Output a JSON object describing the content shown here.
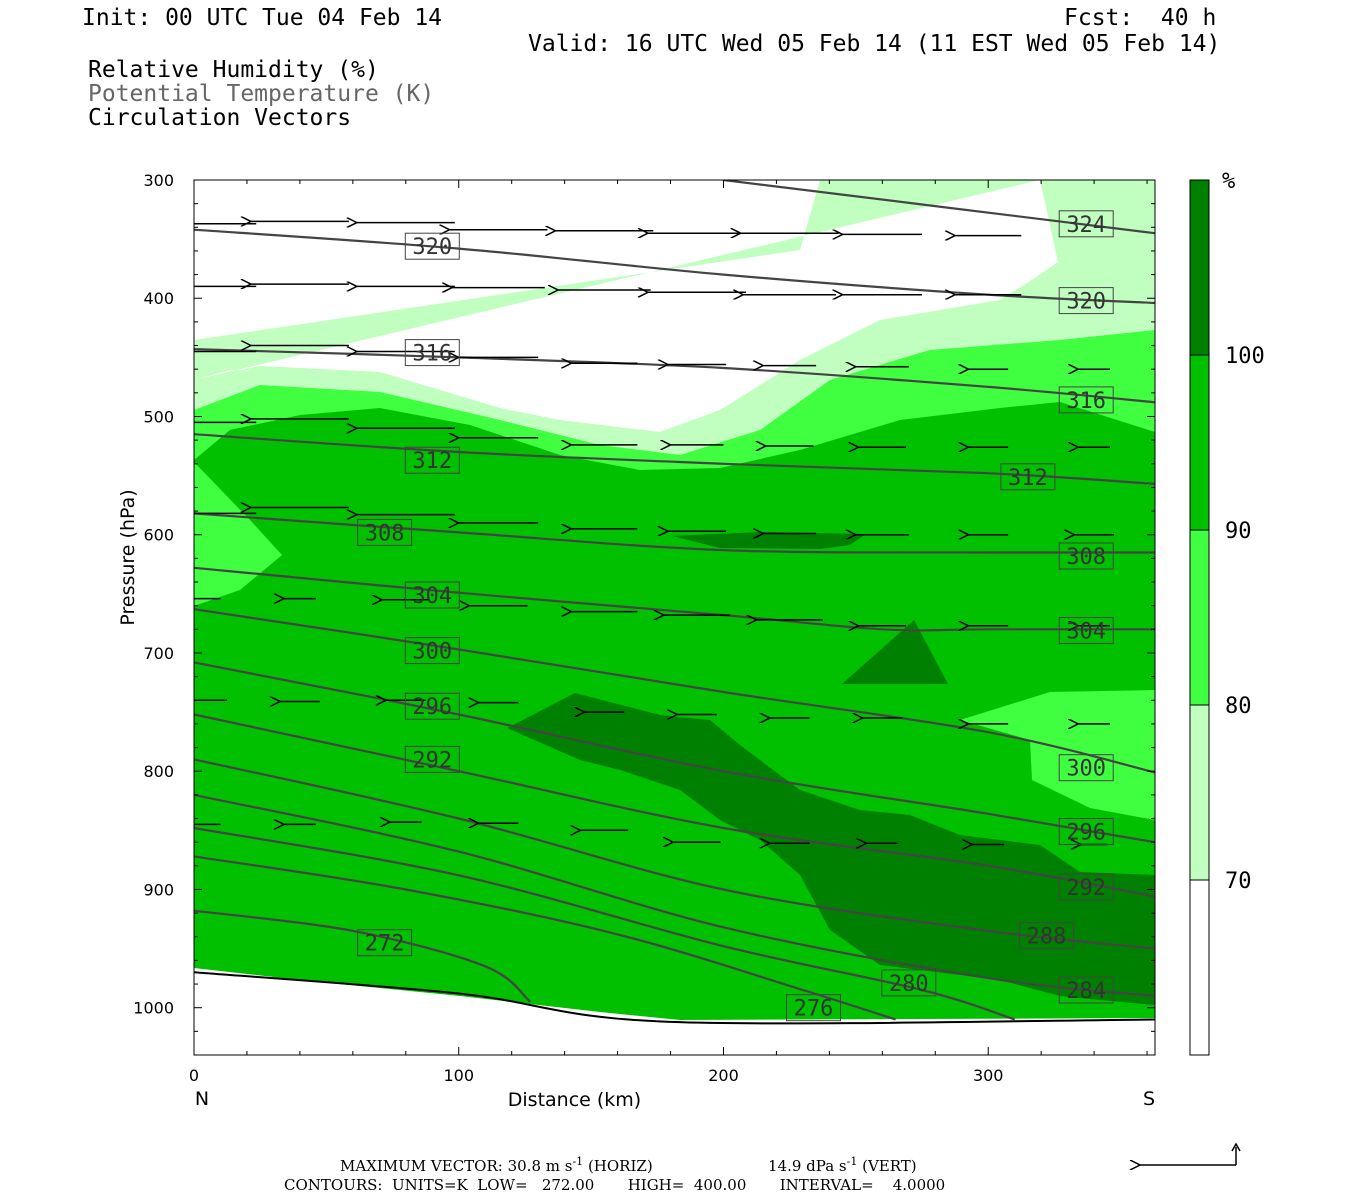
{
  "header": {
    "init": "Init: 00 UTC Tue 04 Feb 14",
    "fcst": "Fcst:  40 h",
    "valid": "Valid: 16 UTC Wed 05 Feb 14 (11 EST Wed 05 Feb 14)"
  },
  "legend_titles": [
    {
      "text": "Relative Humidity (%)",
      "color": "#000000"
    },
    {
      "text": "Potential Temperature (K)",
      "color": "#666666"
    },
    {
      "text": "Circulation Vectors",
      "color": "#000000"
    }
  ],
  "colorbar": {
    "unit": "%",
    "labels": [
      "100",
      "90",
      "80",
      "70"
    ],
    "colors": [
      "#ffffff",
      "#c0ffc0",
      "#40ff40",
      "#00c000",
      "#008000"
    ]
  },
  "footer": {
    "max_vector": "MAXIMUM VECTOR:  30.8 m s",
    "horiz": " (HORIZ)",
    "vert_val": "14.9 dPa s",
    "vert": " (VERT)",
    "exp": "-1",
    "contours": "CONTOURS:  UNITS=K  LOW=   272.00       HIGH=  400.00       INTERVAL=    4.0000"
  },
  "chart_data": {
    "type": "cross-section",
    "xlabel": "Distance (km)",
    "ylabel": "Pressure (hPa)",
    "x_ticks": [
      0,
      100,
      200,
      300
    ],
    "y_ticks": [
      300,
      400,
      500,
      600,
      700,
      800,
      900,
      1000
    ],
    "xlim": [
      0,
      363
    ],
    "ylim": [
      300,
      1040
    ],
    "y_inverted": true,
    "end_labels": {
      "left": "N",
      "right": "S"
    },
    "rh_levels": [
      70,
      80,
      90,
      100
    ],
    "theta_contours": [
      {
        "label": "324",
        "points": [
          [
            200,
            300
          ],
          [
            363,
            345
          ]
        ]
      },
      {
        "label": "320",
        "points": [
          [
            0,
            342
          ],
          [
            100,
            358
          ],
          [
            200,
            380
          ],
          [
            300,
            397
          ],
          [
            363,
            404
          ]
        ]
      },
      {
        "label": "316",
        "points": [
          [
            0,
            443
          ],
          [
            100,
            450
          ],
          [
            200,
            459
          ],
          [
            300,
            475
          ],
          [
            363,
            488
          ]
        ]
      },
      {
        "label": "312",
        "points": [
          [
            0,
            515
          ],
          [
            100,
            530
          ],
          [
            200,
            540
          ],
          [
            300,
            548
          ],
          [
            363,
            557
          ]
        ]
      },
      {
        "label": "308",
        "points": [
          [
            0,
            582
          ],
          [
            100,
            598
          ],
          [
            200,
            613
          ],
          [
            300,
            615
          ],
          [
            363,
            615
          ]
        ]
      },
      {
        "label": "304",
        "points": [
          [
            0,
            628
          ],
          [
            100,
            649
          ],
          [
            200,
            668
          ],
          [
            260,
            680
          ],
          [
            300,
            680
          ],
          [
            363,
            680
          ]
        ]
      },
      {
        "label": "300",
        "points": [
          [
            0,
            663
          ],
          [
            100,
            697
          ],
          [
            200,
            733
          ],
          [
            300,
            767
          ],
          [
            363,
            801
          ]
        ]
      },
      {
        "label": "296",
        "points": [
          [
            0,
            708
          ],
          [
            100,
            752
          ],
          [
            200,
            800
          ],
          [
            300,
            836
          ],
          [
            363,
            860
          ]
        ]
      },
      {
        "label": "292",
        "points": [
          [
            0,
            752
          ],
          [
            100,
            800
          ],
          [
            200,
            848
          ],
          [
            300,
            880
          ],
          [
            363,
            906
          ]
        ]
      },
      {
        "label": "288",
        "points": [
          [
            0,
            790
          ],
          [
            100,
            840
          ],
          [
            200,
            900
          ],
          [
            300,
            935
          ],
          [
            363,
            950
          ]
        ]
      },
      {
        "label": "284",
        "points": [
          [
            0,
            820
          ],
          [
            100,
            868
          ],
          [
            200,
            932
          ],
          [
            300,
            975
          ],
          [
            363,
            990
          ]
        ]
      },
      {
        "label": "280",
        "points": [
          [
            0,
            848
          ],
          [
            100,
            888
          ],
          [
            200,
            948
          ],
          [
            275,
            985
          ],
          [
            310,
            1010
          ]
        ]
      },
      {
        "label": "276",
        "points": [
          [
            0,
            872
          ],
          [
            80,
            900
          ],
          [
            160,
            938
          ],
          [
            230,
            985
          ],
          [
            265,
            1010
          ]
        ]
      },
      {
        "label": "272",
        "points": [
          [
            0,
            918
          ],
          [
            60,
            935
          ],
          [
            110,
            965
          ],
          [
            127,
            995
          ]
        ]
      }
    ],
    "contour_label_positions": [
      {
        "label": "324",
        "x": 337,
        "p": 337
      },
      {
        "label": "320",
        "x": 90,
        "p": 356
      },
      {
        "label": "320",
        "x": 337,
        "p": 402
      },
      {
        "label": "316",
        "x": 90,
        "p": 446
      },
      {
        "label": "316",
        "x": 337,
        "p": 486
      },
      {
        "label": "312",
        "x": 90,
        "p": 537
      },
      {
        "label": "312",
        "x": 315,
        "p": 551
      },
      {
        "label": "308",
        "x": 72,
        "p": 598
      },
      {
        "label": "308",
        "x": 337,
        "p": 618
      },
      {
        "label": "304",
        "x": 90,
        "p": 651
      },
      {
        "label": "304",
        "x": 337,
        "p": 681
      },
      {
        "label": "300",
        "x": 90,
        "p": 698
      },
      {
        "label": "300",
        "x": 337,
        "p": 797
      },
      {
        "label": "296",
        "x": 90,
        "p": 745
      },
      {
        "label": "296",
        "x": 337,
        "p": 851
      },
      {
        "label": "292",
        "x": 90,
        "p": 790
      },
      {
        "label": "292",
        "x": 337,
        "p": 898
      },
      {
        "label": "288",
        "x": 322,
        "p": 939
      },
      {
        "label": "284",
        "x": 337,
        "p": 985
      },
      {
        "label": "280",
        "x": 270,
        "p": 979
      },
      {
        "label": "276",
        "x": 234,
        "p": 1000
      },
      {
        "label": "272",
        "x": 72,
        "p": 945
      }
    ],
    "vector_reference": {
      "horizontal_ms": 30.8,
      "vertical_dPas": 14.9
    },
    "vectors": [
      [
        5,
        337,
        -37,
        0
      ],
      [
        40,
        335,
        -37,
        0
      ],
      [
        80,
        336,
        -37,
        0
      ],
      [
        115,
        342,
        -37,
        0
      ],
      [
        155,
        343,
        -37,
        0
      ],
      [
        190,
        345,
        -37,
        0
      ],
      [
        225,
        345,
        -37,
        0
      ],
      [
        260,
        346,
        -30,
        0
      ],
      [
        300,
        347,
        -25,
        0
      ],
      [
        5,
        390,
        -37,
        0
      ],
      [
        40,
        388,
        -37,
        0
      ],
      [
        80,
        390,
        -37,
        0
      ],
      [
        115,
        391,
        -35,
        0
      ],
      [
        155,
        393,
        -35,
        0
      ],
      [
        190,
        395,
        -37,
        0
      ],
      [
        225,
        397,
        -35,
        0
      ],
      [
        260,
        397,
        -30,
        0
      ],
      [
        300,
        397,
        -25,
        0
      ],
      [
        5,
        445,
        -37,
        0
      ],
      [
        40,
        440,
        -37,
        0
      ],
      [
        80,
        445,
        -37,
        0
      ],
      [
        115,
        450,
        -30,
        0
      ],
      [
        155,
        455,
        -25,
        0
      ],
      [
        190,
        456,
        -22,
        0
      ],
      [
        225,
        457,
        -20,
        0
      ],
      [
        260,
        458,
        -20,
        0
      ],
      [
        300,
        460,
        -15,
        0
      ],
      [
        340,
        460,
        -12,
        0
      ],
      [
        5,
        505,
        -37,
        0
      ],
      [
        40,
        502,
        -37,
        0
      ],
      [
        80,
        510,
        -37,
        0
      ],
      [
        115,
        518,
        -30,
        0
      ],
      [
        155,
        524,
        -25,
        0
      ],
      [
        190,
        524,
        -20,
        0
      ],
      [
        225,
        525,
        -18,
        0
      ],
      [
        260,
        526,
        -18,
        0
      ],
      [
        300,
        526,
        -15,
        0
      ],
      [
        340,
        526,
        -12,
        0
      ],
      [
        5,
        582,
        -37,
        0
      ],
      [
        40,
        577,
        -37,
        0
      ],
      [
        80,
        583,
        -37,
        0
      ],
      [
        115,
        590,
        -30,
        0
      ],
      [
        155,
        595,
        -25,
        0
      ],
      [
        190,
        597,
        -22,
        0
      ],
      [
        225,
        599,
        -20,
        0
      ],
      [
        260,
        600,
        -20,
        0
      ],
      [
        300,
        600,
        -15,
        0
      ],
      [
        340,
        600,
        -15,
        0
      ],
      [
        5,
        654,
        -10,
        0
      ],
      [
        40,
        654,
        -12,
        0
      ],
      [
        80,
        655,
        -18,
        0
      ],
      [
        115,
        660,
        -22,
        0
      ],
      [
        155,
        665,
        -25,
        0
      ],
      [
        190,
        668,
        -25,
        0
      ],
      [
        225,
        672,
        -25,
        0
      ],
      [
        260,
        677,
        -18,
        0
      ],
      [
        300,
        677,
        -15,
        0
      ],
      [
        340,
        677,
        -12,
        0
      ],
      [
        5,
        740,
        -15,
        0
      ],
      [
        40,
        741,
        -15,
        0
      ],
      [
        80,
        740,
        -15,
        0
      ],
      [
        115,
        742,
        -15,
        0
      ],
      [
        155,
        750,
        -15,
        0
      ],
      [
        190,
        752,
        -15,
        0
      ],
      [
        225,
        755,
        -15,
        0
      ],
      [
        260,
        755,
        -15,
        0
      ],
      [
        300,
        760,
        -15,
        0
      ],
      [
        340,
        760,
        -12,
        0
      ],
      [
        5,
        845,
        -10,
        0
      ],
      [
        40,
        845,
        -12,
        0
      ],
      [
        80,
        843,
        -12,
        0
      ],
      [
        115,
        844,
        -15,
        0
      ],
      [
        155,
        850,
        -18,
        0
      ],
      [
        190,
        860,
        -18,
        0
      ],
      [
        225,
        861,
        -15,
        0
      ],
      [
        260,
        861,
        -12,
        0
      ],
      [
        300,
        862,
        -12,
        0
      ],
      [
        340,
        862,
        -10,
        0
      ]
    ],
    "surface": [
      [
        0,
        970
      ],
      [
        100,
        988
      ],
      [
        180,
        1012
      ],
      [
        363,
        1010
      ]
    ]
  }
}
